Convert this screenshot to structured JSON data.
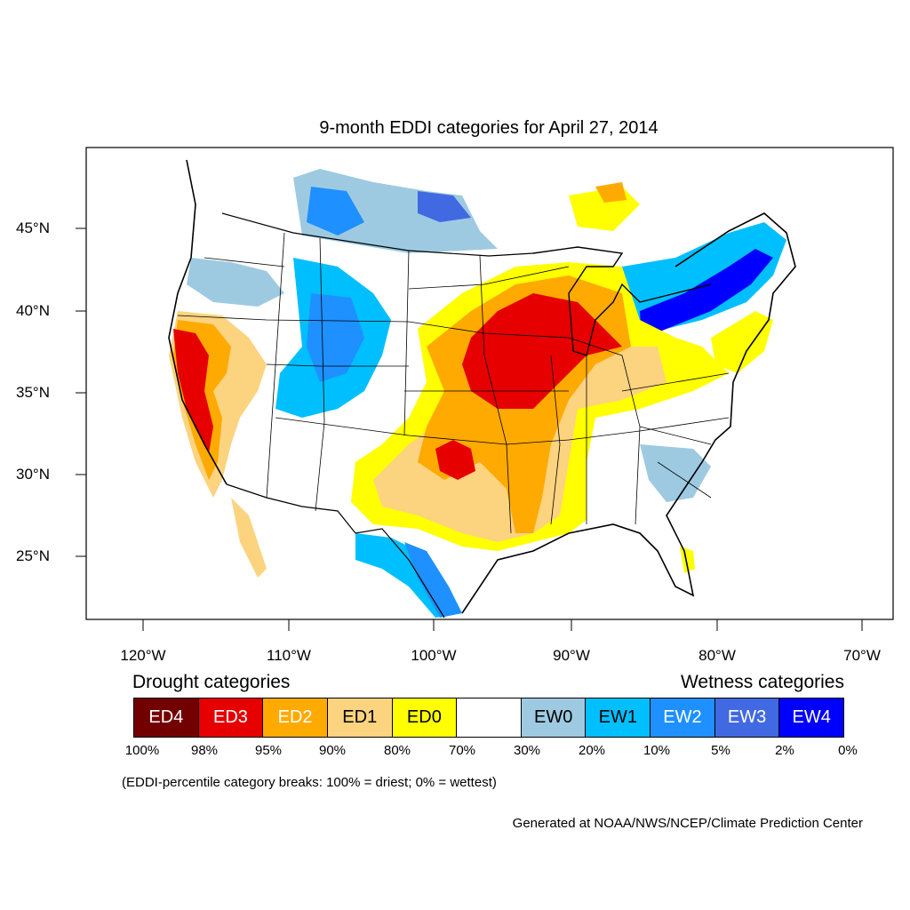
{
  "title": "9-month EDDI categories for April 27, 2014",
  "lat_labels": [
    "45°N",
    "40°N",
    "35°N",
    "30°N",
    "25°N"
  ],
  "lon_labels": [
    "120°W",
    "110°W",
    "100°W",
    "90°W",
    "80°W",
    "70°W"
  ],
  "legend": {
    "drought_heading": "Drought categories",
    "wetness_heading": "Wetness categories",
    "categories": [
      {
        "label": "ED4",
        "color": "#730000",
        "text_color": "#ffffff"
      },
      {
        "label": "ED3",
        "color": "#e60000",
        "text_color": "#ffffff"
      },
      {
        "label": "ED2",
        "color": "#ffaa00",
        "text_color": "#ffffff"
      },
      {
        "label": "ED1",
        "color": "#fcd37f",
        "text_color": "#000000"
      },
      {
        "label": "ED0",
        "color": "#ffff00",
        "text_color": "#000000"
      },
      {
        "label": "",
        "color": "#ffffff",
        "text_color": "#000000"
      },
      {
        "label": "EW0",
        "color": "#9ecae1",
        "text_color": "#000000"
      },
      {
        "label": "EW1",
        "color": "#00bfff",
        "text_color": "#000000"
      },
      {
        "label": "EW2",
        "color": "#1e90ff",
        "text_color": "#ffffff"
      },
      {
        "label": "EW3",
        "color": "#4169e1",
        "text_color": "#ffffff"
      },
      {
        "label": "EW4",
        "color": "#0000ff",
        "text_color": "#ffffff"
      }
    ],
    "breaks": [
      "100%",
      "98%",
      "95%",
      "90%",
      "80%",
      "70%",
      "30%",
      "20%",
      "10%",
      "5%",
      "2%",
      "0%"
    ]
  },
  "note": "(EDDI-percentile category breaks: 100% = driest; 0% = wettest)",
  "credit": "Generated at NOAA/NWS/NCEP/Climate Prediction Center"
}
